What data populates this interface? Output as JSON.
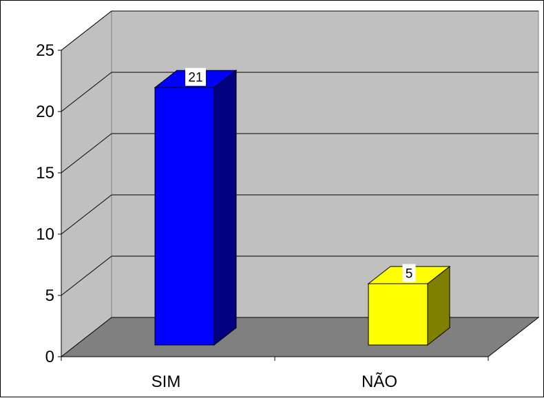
{
  "chart_data": {
    "type": "bar",
    "categories": [
      "SIM",
      "NÃO"
    ],
    "values": [
      21,
      5
    ],
    "data_labels": [
      "21",
      "5"
    ],
    "colors": [
      "#0000FF",
      "#FFFF00"
    ],
    "side_colors": [
      "#000080",
      "#808000"
    ],
    "wall_color": "#C0C0C0",
    "floor_color": "#808080",
    "ylim": [
      0,
      25
    ],
    "yticks": [
      "0",
      "5",
      "10",
      "15",
      "20",
      "25"
    ],
    "grid": true,
    "legend": "none",
    "title": "",
    "xlabel": "",
    "ylabel": ""
  }
}
